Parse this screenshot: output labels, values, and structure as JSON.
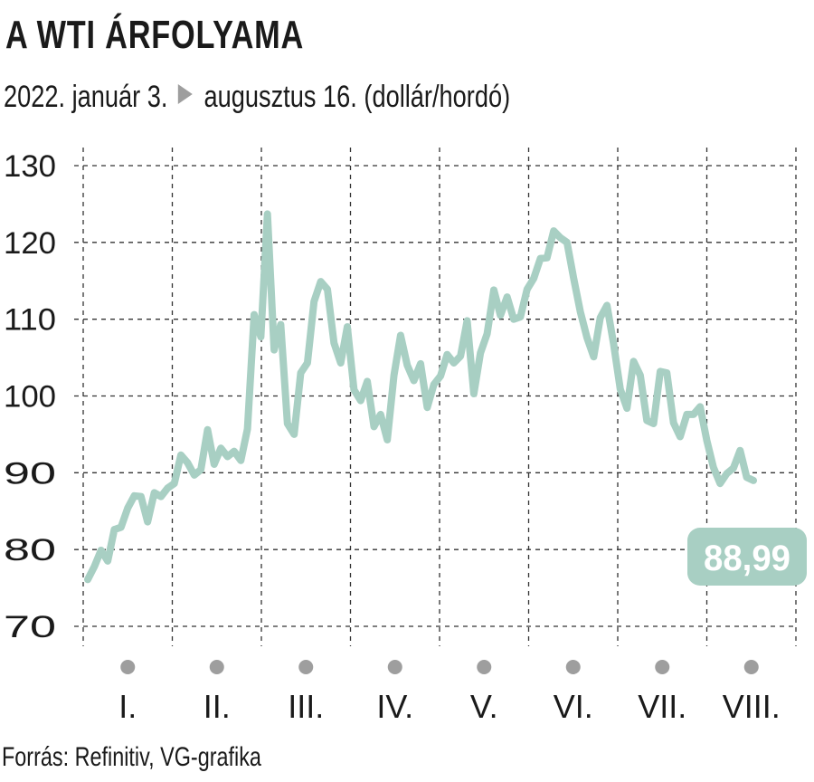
{
  "header": {
    "title": "A WTI ÁRFOLYAMA",
    "subtitle_start": "2022. január 3.",
    "subtitle_end": "augusztus 16. (dollár/hordó)"
  },
  "footer": {
    "source": "Forrás: Refinitiv, VG-grafika"
  },
  "colors": {
    "line": "#a8cfc3",
    "callout_bg": "#a8cfc3",
    "grid": "#333333",
    "dots": "#9e9e9e",
    "arrow": "#9e9e9e"
  },
  "chart_data": {
    "type": "line",
    "title": "A WTI ÁRFOLYAMA",
    "subtitle": "2022. január 3. ▶ augusztus 16. (dollár/hordó)",
    "ylim": [
      70,
      130
    ],
    "yticks": [
      130,
      120,
      110,
      100,
      90,
      80,
      70
    ],
    "ytick_labels": [
      "130",
      "120",
      "110",
      "100",
      "90",
      "80",
      "70"
    ],
    "months": [
      "I.",
      "II.",
      "III.",
      "IV.",
      "V.",
      "VI.",
      "VII.",
      "VIII."
    ],
    "grid": true,
    "last_value_label": "88,99",
    "series": [
      {
        "values": [
          76.1,
          77.8,
          79.9,
          78.5,
          82.6,
          82.9,
          85.4,
          87.0,
          86.9,
          83.6,
          87.4,
          86.9,
          88.0,
          88.6,
          92.3,
          91.3,
          89.7,
          90.4,
          95.6,
          91.1,
          93.2,
          92.1,
          92.8,
          91.6,
          95.7,
          110.6,
          107.7,
          123.7,
          106.0,
          109.3,
          96.4,
          95.0,
          103.0,
          104.3,
          112.3,
          114.9,
          113.9,
          106.9,
          104.3,
          109.0,
          100.8,
          99.4,
          101.9,
          96.0,
          97.6,
          94.3,
          102.7,
          107.9,
          104.0,
          102.0,
          104.2,
          98.5,
          101.5,
          102.6,
          105.4,
          104.3,
          105.2,
          109.8,
          100.3,
          105.6,
          108.1,
          113.8,
          110.5,
          112.9,
          110.0,
          110.3,
          113.9,
          115.3,
          117.9,
          118.0,
          121.5,
          120.6,
          120.0,
          115.3,
          111.0,
          107.6,
          105.1,
          110.2,
          111.8,
          106.8,
          100.9,
          98.4,
          104.5,
          102.7,
          96.8,
          96.4,
          103.2,
          103.0,
          96.5,
          94.7,
          97.6,
          97.6,
          98.6,
          94.2,
          90.7,
          88.6,
          89.9,
          90.6,
          92.9,
          89.4,
          88.99
        ]
      }
    ]
  }
}
